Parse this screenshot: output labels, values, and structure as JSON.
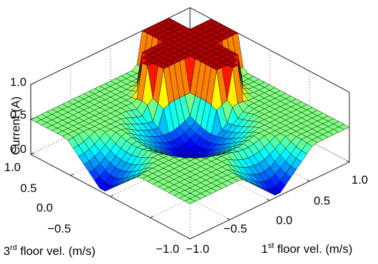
{
  "chart_data": {
    "type": "surface",
    "x": {
      "ticks": [
        -1.0,
        -0.5,
        0.0,
        0.5,
        1.0
      ],
      "tick_labels": [
        "−1.0",
        "−0.5",
        "0.0",
        "0.5",
        "1.0"
      ],
      "lim": [
        -1,
        1
      ],
      "label_prefix": "1",
      "label_sup": "st",
      "label_suffix": " floor vel. (m/s)"
    },
    "y": {
      "ticks": [
        -1.0,
        -0.5,
        0.0,
        0.5,
        1.0
      ],
      "tick_labels": [
        "−1.0",
        "−0.5",
        "0.0",
        "0.5",
        "1.0"
      ],
      "lim": [
        -1,
        1
      ],
      "label_prefix": "3",
      "label_sup": "rd",
      "label_suffix": " floor vel. (m/s)"
    },
    "z": {
      "ticks": [
        0.0,
        0.5,
        1.0
      ],
      "tick_labels": [
        "0.0",
        "0.5",
        "1.0"
      ],
      "lim": [
        0,
        1
      ],
      "label": "Current (A)"
    },
    "grid": true,
    "grid_count": 31,
    "colormap": "jet",
    "surface_model": {
      "description": "plateau near 1.0 where both velocities are low, ~0.5 terrace along edges, basin near 0 at center and outer corners",
      "plateau_level": 1.0,
      "terrace_level": 0.5,
      "basin_level": 0.0
    }
  }
}
